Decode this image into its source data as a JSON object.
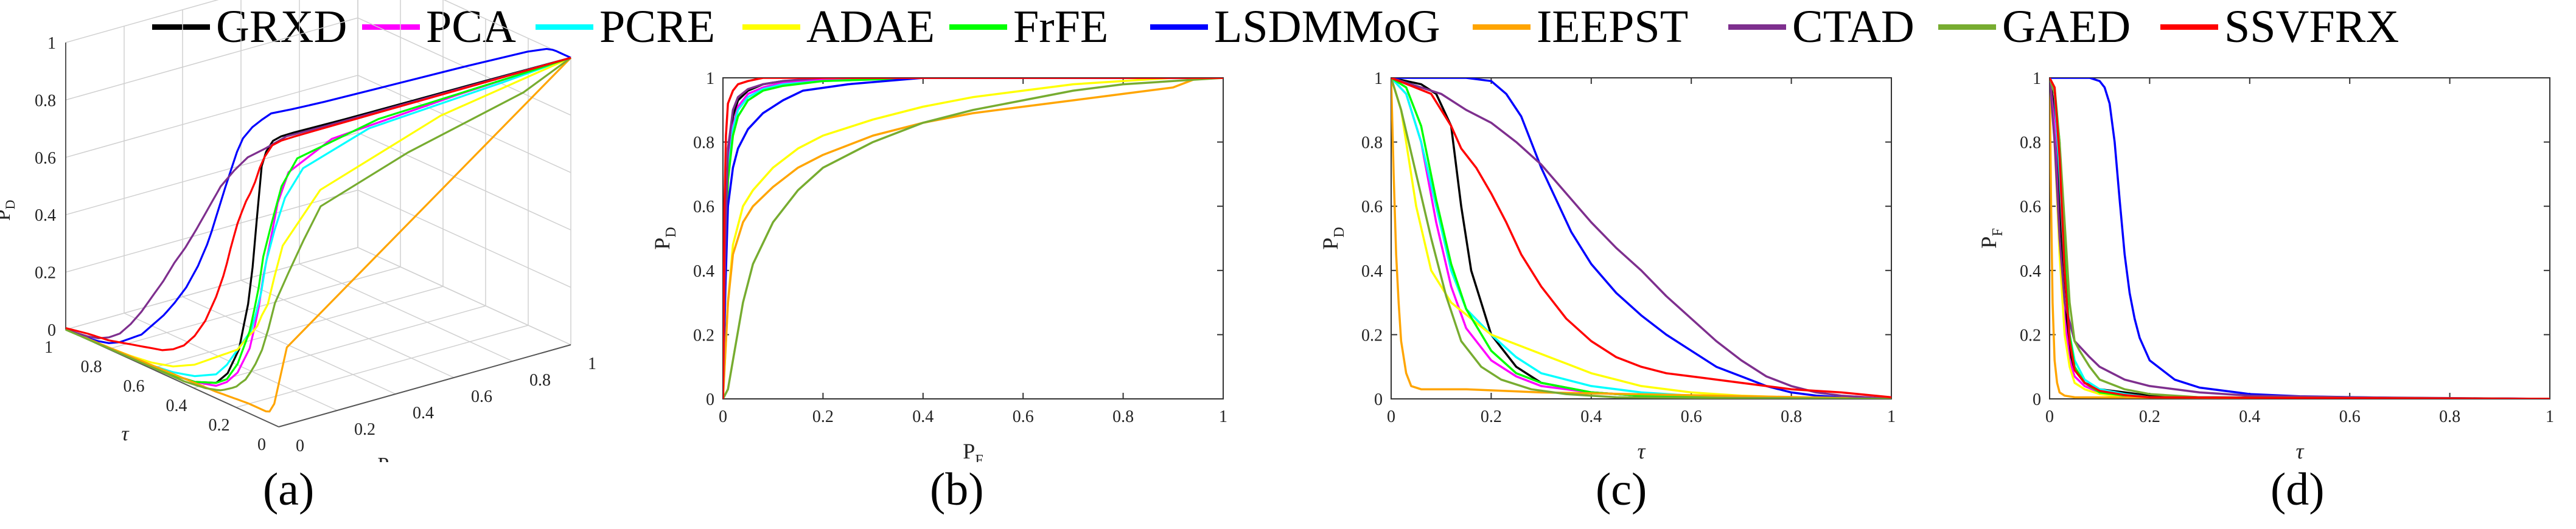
{
  "legend": [
    {
      "name": "GRXD",
      "color": "#000000"
    },
    {
      "name": "PCA",
      "color": "#ff00ff"
    },
    {
      "name": "PCRE",
      "color": "#00ffff"
    },
    {
      "name": "ADAE",
      "color": "#ffff00"
    },
    {
      "name": "FrFE",
      "color": "#00ff00"
    },
    {
      "name": "LSDMMoG",
      "color": "#0000ff"
    },
    {
      "name": "IEEPST",
      "color": "#ffa500"
    },
    {
      "name": "CTAD",
      "color": "#7e2f8e"
    },
    {
      "name": "GAED",
      "color": "#77ac30"
    },
    {
      "name": "SSVFRX",
      "color": "#ff0000"
    }
  ],
  "panel_labels": [
    "(a)",
    "(b)",
    "(c)",
    "(d)"
  ],
  "chart_data": [
    {
      "id": "a",
      "type": "line3d",
      "xlabel": "τ",
      "ylabel": "P_F",
      "zlabel": "P_D",
      "x_ticks": [
        "1",
        "0.8",
        "0.6",
        "0.4",
        "0.2",
        "0"
      ],
      "y_ticks": [
        "0",
        "0.2",
        "0.4",
        "0.6",
        "0.8",
        "1"
      ],
      "z_ticks": [
        "0",
        "0.2",
        "0.4",
        "0.6",
        "0.8",
        "1"
      ]
    },
    {
      "id": "b",
      "type": "line",
      "xlabel": "P",
      "xlabel_sub": "F",
      "ylabel": "P",
      "ylabel_sub": "D",
      "xlim": [
        0,
        1
      ],
      "ylim": [
        0,
        1
      ],
      "x_ticks": [
        "0",
        "0.2",
        "0.4",
        "0.6",
        "0.8",
        "1"
      ],
      "y_ticks": [
        "0",
        "0.2",
        "0.4",
        "0.6",
        "0.8",
        "1"
      ],
      "series": [
        {
          "name": "GRXD",
          "x": [
            0,
            0.005,
            0.01,
            0.02,
            0.03,
            0.05,
            0.08,
            0.12,
            0.2,
            0.4,
            1
          ],
          "y": [
            0,
            0.5,
            0.75,
            0.88,
            0.93,
            0.96,
            0.98,
            0.99,
            0.995,
            1,
            1
          ]
        },
        {
          "name": "PCA",
          "x": [
            0,
            0.005,
            0.01,
            0.02,
            0.03,
            0.05,
            0.08,
            0.12,
            0.2,
            0.4,
            1
          ],
          "y": [
            0,
            0.45,
            0.72,
            0.85,
            0.91,
            0.95,
            0.97,
            0.985,
            0.995,
            1,
            1
          ]
        },
        {
          "name": "PCRE",
          "x": [
            0,
            0.005,
            0.01,
            0.02,
            0.03,
            0.05,
            0.08,
            0.12,
            0.2,
            0.4,
            1
          ],
          "y": [
            0,
            0.42,
            0.7,
            0.84,
            0.9,
            0.94,
            0.965,
            0.98,
            0.99,
            1,
            1
          ]
        },
        {
          "name": "ADAE",
          "x": [
            0,
            0.01,
            0.02,
            0.04,
            0.06,
            0.1,
            0.15,
            0.2,
            0.3,
            0.4,
            0.5,
            0.6,
            0.7,
            0.8,
            0.9,
            1
          ],
          "y": [
            0,
            0.3,
            0.48,
            0.6,
            0.65,
            0.72,
            0.78,
            0.82,
            0.87,
            0.91,
            0.94,
            0.96,
            0.98,
            0.99,
            1,
            1
          ]
        },
        {
          "name": "FrFE",
          "x": [
            0,
            0.005,
            0.01,
            0.02,
            0.03,
            0.05,
            0.08,
            0.12,
            0.2,
            0.4,
            1
          ],
          "y": [
            0,
            0.4,
            0.68,
            0.82,
            0.88,
            0.93,
            0.96,
            0.975,
            0.99,
            1,
            1
          ]
        },
        {
          "name": "LSDMMoG",
          "x": [
            0,
            0.005,
            0.01,
            0.02,
            0.03,
            0.05,
            0.08,
            0.12,
            0.16,
            0.25,
            0.4,
            1
          ],
          "y": [
            0,
            0.35,
            0.6,
            0.72,
            0.78,
            0.84,
            0.89,
            0.93,
            0.96,
            0.98,
            1,
            1
          ]
        },
        {
          "name": "IEEPST",
          "x": [
            0,
            0.01,
            0.02,
            0.04,
            0.06,
            0.1,
            0.15,
            0.2,
            0.3,
            0.4,
            0.5,
            0.6,
            0.7,
            0.8,
            0.9,
            0.95,
            1
          ],
          "y": [
            0,
            0.3,
            0.45,
            0.55,
            0.6,
            0.66,
            0.72,
            0.76,
            0.82,
            0.86,
            0.89,
            0.91,
            0.93,
            0.95,
            0.97,
            1,
            1
          ]
        },
        {
          "name": "CTAD",
          "x": [
            0,
            0.005,
            0.01,
            0.02,
            0.03,
            0.05,
            0.08,
            0.12,
            0.2,
            0.4,
            1
          ],
          "y": [
            0,
            0.5,
            0.78,
            0.9,
            0.94,
            0.965,
            0.98,
            0.99,
            1,
            1,
            1
          ]
        },
        {
          "name": "GAED",
          "x": [
            0,
            0.01,
            0.02,
            0.04,
            0.06,
            0.1,
            0.15,
            0.2,
            0.25,
            0.3,
            0.4,
            0.5,
            0.6,
            0.7,
            0.8,
            0.9,
            1
          ],
          "y": [
            0,
            0.03,
            0.12,
            0.3,
            0.42,
            0.55,
            0.65,
            0.72,
            0.76,
            0.8,
            0.86,
            0.9,
            0.93,
            0.96,
            0.98,
            0.99,
            1
          ]
        },
        {
          "name": "SSVFRX",
          "x": [
            0,
            0.003,
            0.006,
            0.01,
            0.02,
            0.03,
            0.05,
            0.08,
            0.12,
            0.2,
            1
          ],
          "y": [
            0,
            0.6,
            0.82,
            0.92,
            0.96,
            0.98,
            0.99,
            1,
            1,
            1,
            1
          ]
        }
      ]
    },
    {
      "id": "c",
      "type": "line",
      "xlabel": "τ",
      "ylabel": "P",
      "ylabel_sub": "D",
      "xlim": [
        0,
        1
      ],
      "ylim": [
        0,
        1
      ],
      "x_ticks": [
        "0",
        "0.2",
        "0.4",
        "0.6",
        "0.8",
        "1"
      ],
      "y_ticks": [
        "0",
        "0.2",
        "0.4",
        "0.6",
        "0.8",
        "1"
      ],
      "series": [
        {
          "name": "GRXD",
          "x": [
            0,
            0.06,
            0.09,
            0.12,
            0.14,
            0.16,
            0.18,
            0.2,
            0.25,
            0.3,
            0.4,
            0.5,
            0.6,
            1
          ],
          "y": [
            1,
            0.98,
            0.95,
            0.85,
            0.6,
            0.4,
            0.3,
            0.2,
            0.1,
            0.05,
            0.02,
            0.01,
            0.005,
            0
          ]
        },
        {
          "name": "PCA",
          "x": [
            0,
            0.03,
            0.06,
            0.09,
            0.12,
            0.15,
            0.2,
            0.25,
            0.3,
            0.4,
            0.5,
            1
          ],
          "y": [
            1,
            0.95,
            0.8,
            0.55,
            0.35,
            0.22,
            0.12,
            0.07,
            0.04,
            0.02,
            0.01,
            0
          ]
        },
        {
          "name": "PCRE",
          "x": [
            0,
            0.03,
            0.06,
            0.09,
            0.12,
            0.15,
            0.2,
            0.25,
            0.3,
            0.4,
            0.5,
            0.6,
            1
          ],
          "y": [
            1,
            0.95,
            0.8,
            0.6,
            0.4,
            0.28,
            0.2,
            0.13,
            0.08,
            0.04,
            0.02,
            0.01,
            0
          ]
        },
        {
          "name": "ADAE",
          "x": [
            0,
            0.02,
            0.05,
            0.08,
            0.12,
            0.16,
            0.2,
            0.25,
            0.3,
            0.35,
            0.4,
            0.45,
            0.5,
            0.6,
            0.7,
            0.8,
            1
          ],
          "y": [
            1,
            0.9,
            0.6,
            0.4,
            0.3,
            0.25,
            0.2,
            0.17,
            0.14,
            0.11,
            0.08,
            0.06,
            0.04,
            0.02,
            0.01,
            0.005,
            0
          ]
        },
        {
          "name": "FrFE",
          "x": [
            0,
            0.03,
            0.06,
            0.09,
            0.12,
            0.15,
            0.2,
            0.25,
            0.3,
            0.4,
            0.5,
            1
          ],
          "y": [
            1,
            0.97,
            0.85,
            0.62,
            0.42,
            0.28,
            0.15,
            0.08,
            0.05,
            0.02,
            0.01,
            0
          ]
        },
        {
          "name": "LSDMMoG",
          "x": [
            0,
            0.15,
            0.2,
            0.23,
            0.26,
            0.28,
            0.3,
            0.33,
            0.36,
            0.4,
            0.45,
            0.5,
            0.55,
            0.6,
            0.65,
            0.7,
            0.75,
            0.8,
            0.85,
            0.9,
            1
          ],
          "y": [
            1,
            1,
            0.99,
            0.95,
            0.88,
            0.8,
            0.72,
            0.62,
            0.52,
            0.42,
            0.33,
            0.26,
            0.2,
            0.15,
            0.1,
            0.07,
            0.04,
            0.02,
            0.01,
            0.005,
            0
          ]
        },
        {
          "name": "IEEPST",
          "x": [
            0,
            0.005,
            0.01,
            0.015,
            0.02,
            0.03,
            0.04,
            0.06,
            0.08,
            0.15,
            0.3,
            1
          ],
          "y": [
            1,
            0.7,
            0.45,
            0.3,
            0.18,
            0.08,
            0.04,
            0.03,
            0.03,
            0.03,
            0.02,
            0
          ]
        },
        {
          "name": "CTAD",
          "x": [
            0,
            0.1,
            0.15,
            0.2,
            0.25,
            0.3,
            0.35,
            0.4,
            0.45,
            0.5,
            0.55,
            0.6,
            0.65,
            0.7,
            0.75,
            0.8,
            0.85,
            0.9,
            1
          ],
          "y": [
            1,
            0.95,
            0.9,
            0.86,
            0.8,
            0.73,
            0.64,
            0.55,
            0.47,
            0.4,
            0.32,
            0.25,
            0.18,
            0.12,
            0.07,
            0.04,
            0.02,
            0.01,
            0
          ]
        },
        {
          "name": "GAED",
          "x": [
            0,
            0.02,
            0.05,
            0.08,
            0.11,
            0.14,
            0.18,
            0.22,
            0.28,
            0.35,
            0.45,
            1
          ],
          "y": [
            1,
            0.9,
            0.7,
            0.5,
            0.32,
            0.18,
            0.1,
            0.06,
            0.03,
            0.015,
            0.005,
            0
          ]
        },
        {
          "name": "SSVFRX",
          "x": [
            0,
            0.08,
            0.1,
            0.12,
            0.14,
            0.17,
            0.2,
            0.23,
            0.26,
            0.3,
            0.35,
            0.4,
            0.45,
            0.5,
            0.55,
            0.6,
            0.7,
            0.8,
            0.9,
            1
          ],
          "y": [
            1,
            0.95,
            0.9,
            0.85,
            0.78,
            0.72,
            0.64,
            0.55,
            0.45,
            0.35,
            0.25,
            0.18,
            0.13,
            0.1,
            0.08,
            0.07,
            0.05,
            0.03,
            0.02,
            0.005
          ]
        }
      ]
    },
    {
      "id": "d",
      "type": "line",
      "xlabel": "τ",
      "ylabel": "P",
      "ylabel_sub": "F",
      "xlim": [
        0,
        1
      ],
      "ylim": [
        0,
        1
      ],
      "x_ticks": [
        "0",
        "0.2",
        "0.4",
        "0.6",
        "0.8",
        "1"
      ],
      "y_ticks": [
        "0",
        "0.2",
        "0.4",
        "0.6",
        "0.8",
        "1"
      ],
      "series": [
        {
          "name": "GRXD",
          "x": [
            0,
            0.01,
            0.02,
            0.03,
            0.04,
            0.05,
            0.07,
            0.1,
            0.15,
            0.2,
            0.3,
            1
          ],
          "y": [
            1,
            0.9,
            0.6,
            0.3,
            0.15,
            0.09,
            0.05,
            0.03,
            0.02,
            0.01,
            0.005,
            0
          ]
        },
        {
          "name": "PCA",
          "x": [
            0,
            0.01,
            0.02,
            0.03,
            0.04,
            0.05,
            0.07,
            0.1,
            0.15,
            0.2,
            1
          ],
          "y": [
            1,
            0.85,
            0.5,
            0.25,
            0.12,
            0.07,
            0.04,
            0.02,
            0.01,
            0.005,
            0
          ]
        },
        {
          "name": "PCRE",
          "x": [
            0,
            0.01,
            0.02,
            0.03,
            0.04,
            0.05,
            0.07,
            0.1,
            0.15,
            0.2,
            1
          ],
          "y": [
            1,
            0.95,
            0.7,
            0.4,
            0.2,
            0.12,
            0.06,
            0.03,
            0.015,
            0.005,
            0
          ]
        },
        {
          "name": "ADAE",
          "x": [
            0,
            0.01,
            0.02,
            0.03,
            0.04,
            0.05,
            0.07,
            0.1,
            0.15,
            1
          ],
          "y": [
            1,
            0.8,
            0.45,
            0.2,
            0.1,
            0.05,
            0.03,
            0.015,
            0.005,
            0
          ]
        },
        {
          "name": "FrFE",
          "x": [
            0,
            0.01,
            0.02,
            0.03,
            0.04,
            0.05,
            0.07,
            0.1,
            0.15,
            0.2,
            1
          ],
          "y": [
            1,
            0.97,
            0.8,
            0.45,
            0.2,
            0.1,
            0.05,
            0.02,
            0.01,
            0.005,
            0
          ]
        },
        {
          "name": "LSDMMoG",
          "x": [
            0,
            0.08,
            0.1,
            0.11,
            0.12,
            0.13,
            0.14,
            0.15,
            0.16,
            0.17,
            0.18,
            0.2,
            0.25,
            0.3,
            0.4,
            0.5,
            0.7,
            1
          ],
          "y": [
            1,
            1,
            0.99,
            0.97,
            0.92,
            0.8,
            0.62,
            0.45,
            0.33,
            0.25,
            0.19,
            0.12,
            0.06,
            0.035,
            0.015,
            0.008,
            0.003,
            0
          ]
        },
        {
          "name": "IEEPST",
          "x": [
            0,
            0.003,
            0.006,
            0.01,
            0.015,
            0.02,
            0.03,
            0.05,
            1
          ],
          "y": [
            1,
            0.6,
            0.3,
            0.12,
            0.05,
            0.02,
            0.01,
            0.005,
            0
          ]
        },
        {
          "name": "CTAD",
          "x": [
            0,
            0.01,
            0.02,
            0.03,
            0.05,
            0.08,
            0.1,
            0.15,
            0.2,
            0.3,
            0.4,
            0.6,
            1
          ],
          "y": [
            1,
            0.8,
            0.5,
            0.3,
            0.18,
            0.13,
            0.1,
            0.06,
            0.04,
            0.02,
            0.01,
            0.005,
            0
          ]
        },
        {
          "name": "GAED",
          "x": [
            0,
            0.01,
            0.02,
            0.03,
            0.04,
            0.05,
            0.06,
            0.08,
            0.1,
            0.15,
            0.2,
            0.3,
            1
          ],
          "y": [
            1,
            0.95,
            0.8,
            0.55,
            0.3,
            0.18,
            0.15,
            0.1,
            0.06,
            0.03,
            0.015,
            0.005,
            0
          ]
        },
        {
          "name": "SSVFRX",
          "x": [
            0,
            0.01,
            0.02,
            0.03,
            0.04,
            0.05,
            0.07,
            0.1,
            0.15,
            0.2,
            1
          ],
          "y": [
            1,
            0.97,
            0.75,
            0.4,
            0.18,
            0.09,
            0.05,
            0.025,
            0.012,
            0.005,
            0
          ]
        }
      ]
    }
  ]
}
